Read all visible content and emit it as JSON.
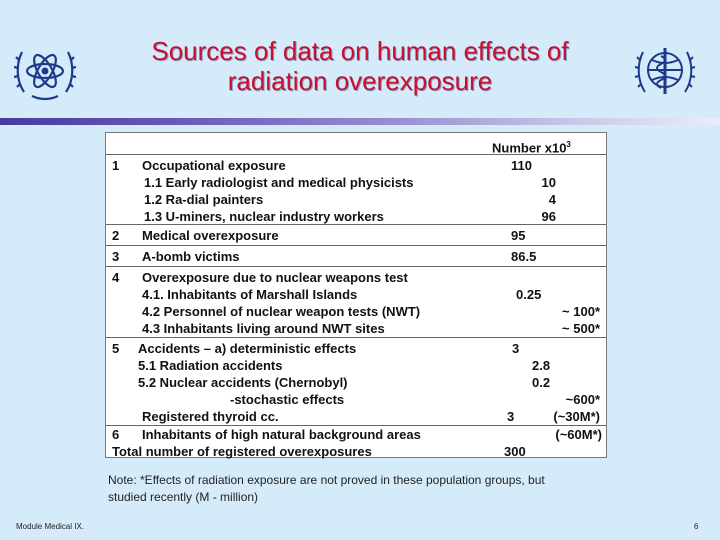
{
  "slide": {
    "title_line1": "Sources of data on human effects of",
    "title_line2": "radiation overexposure",
    "header_number": "Number  x10",
    "header_exp": "3",
    "rows": {
      "r1_num": "1",
      "r1_label": "Occupational exposure",
      "r1_value": "110",
      "r1_1_label": "1.1   Early radiologist and medical physicists",
      "r1_1_value": "10",
      "r1_2_label": "1.2  Ra-dial painters",
      "r1_2_value": "4",
      "r1_3_label": "1.3   U-miners, nuclear industry workers",
      "r1_3_value": "96",
      "r2_num": "2",
      "r2_label": "Medical overexposure",
      "r2_value": "95",
      "r3_num": "3",
      "r3_label": "A-bomb victims",
      "r3_value": "86.5",
      "r4_num": "4",
      "r4_label": "Overexposure due to nuclear weapons test",
      "r4_1_label": "4.1. Inhabitants of Marshall Islands",
      "r4_1_value": "0.25",
      "r4_2_label": "4.2 Personnel of  nuclear weapon tests (NWT)",
      "r4_2_value": "~ 100*",
      "r4_3_label": "4.3 Inhabitants living around NWT sites",
      "r4_3_value": "~ 500*",
      "r5_num": "5",
      "r5_label": "Accidents – a)  deterministic effects",
      "r5_value": "3",
      "r5_1_label": "5.1 Radiation accidents",
      "r5_1_value": "2.8",
      "r5_2_label": "5.2 Nuclear accidents (Chernobyl)",
      "r5_2_value": "0.2",
      "r5_stoch_label": "-stochastic effects",
      "r5_stoch_value": "~600*",
      "r5_thyroid_label": "Registered thyroid cc.",
      "r5_thyroid_value": "3",
      "r5_thyroid_value2": "(~30M*)",
      "r6_num": "6",
      "r6_label": "Inhabitants of high natural background areas",
      "r6_value": "(~60M*)",
      "total_label": "Total number of registered overexposures",
      "total_value": "300"
    },
    "note_line1": "Note: *Effects of radiation exposure are not proved in these population groups, but",
    "note_line2": "studied recently    (M - million)",
    "footer_left": "Module Medical IX.",
    "page_number": "6",
    "colors": {
      "background": "#d6ebfa",
      "title": "#c8102e",
      "logo": "#1d3a8a"
    },
    "icons": {
      "left_logo": "iaea-logo",
      "right_logo": "who-logo"
    }
  }
}
